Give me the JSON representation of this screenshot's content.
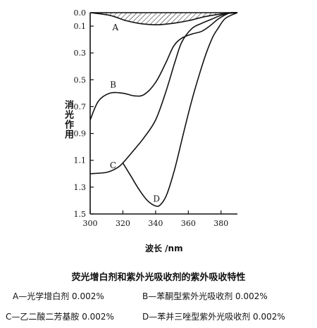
{
  "chart_data": {
    "type": "line",
    "title": "荧光增白剂和紫外光吸收剂的紫外吸收特性",
    "xlabel": "波长 /nm",
    "ylabel": "消光作用",
    "xlim": [
      300,
      390
    ],
    "ylim": [
      0.0,
      1.5
    ],
    "y_inverted": true,
    "x_ticks": [
      "300",
      "320",
      "340",
      "360",
      "380"
    ],
    "y_ticks": [
      "0.0",
      "0.1",
      "0.3",
      "0.5",
      "0.7",
      "0.9",
      "1.1",
      "1.3",
      "1.5"
    ],
    "grid": false,
    "series": [
      {
        "name": "A",
        "color": "#111111",
        "x": [
          300,
          312,
          322,
          330,
          340,
          350,
          360,
          370,
          380,
          390
        ],
        "y": [
          0.0,
          0.02,
          0.06,
          0.08,
          0.09,
          0.08,
          0.06,
          0.03,
          0.01,
          0.0
        ]
      },
      {
        "name": "B",
        "color": "#111111",
        "x": [
          300,
          305,
          312,
          320,
          327,
          333,
          340,
          346,
          351,
          356,
          362,
          368,
          373,
          378,
          382,
          386,
          390
        ],
        "y": [
          0.8,
          0.66,
          0.6,
          0.6,
          0.62,
          0.61,
          0.52,
          0.38,
          0.25,
          0.19,
          0.16,
          0.14,
          0.1,
          0.05,
          0.02,
          0.0,
          0.0
        ]
      },
      {
        "name": "C",
        "color": "#111111",
        "x": [
          300,
          310,
          316,
          320,
          327,
          333,
          340,
          346,
          352,
          356,
          362,
          368,
          374,
          380,
          386,
          390
        ],
        "y": [
          1.2,
          1.19,
          1.16,
          1.12,
          1.02,
          0.93,
          0.8,
          0.6,
          0.36,
          0.22,
          0.12,
          0.08,
          0.05,
          0.02,
          0.0,
          0.0
        ]
      },
      {
        "name": "D",
        "color": "#111111",
        "x": [
          320,
          325,
          330,
          335,
          340,
          343,
          347,
          352,
          357,
          362,
          367,
          371,
          375,
          378,
          382,
          386,
          390
        ],
        "y": [
          1.12,
          1.22,
          1.32,
          1.4,
          1.44,
          1.43,
          1.35,
          1.15,
          0.9,
          0.66,
          0.45,
          0.3,
          0.18,
          0.12,
          0.05,
          0.02,
          0.0
        ]
      }
    ],
    "hatched_region_under": "A"
  },
  "legend": {
    "a": "A—光学增白剂 0.002%",
    "b": "B—苯酮型紫外光吸收剂 0.002%",
    "c": "C—乙二酸二芳基胺 0.002%",
    "d": "D—苯并三唑型紫外光吸收剂 0.002%"
  }
}
